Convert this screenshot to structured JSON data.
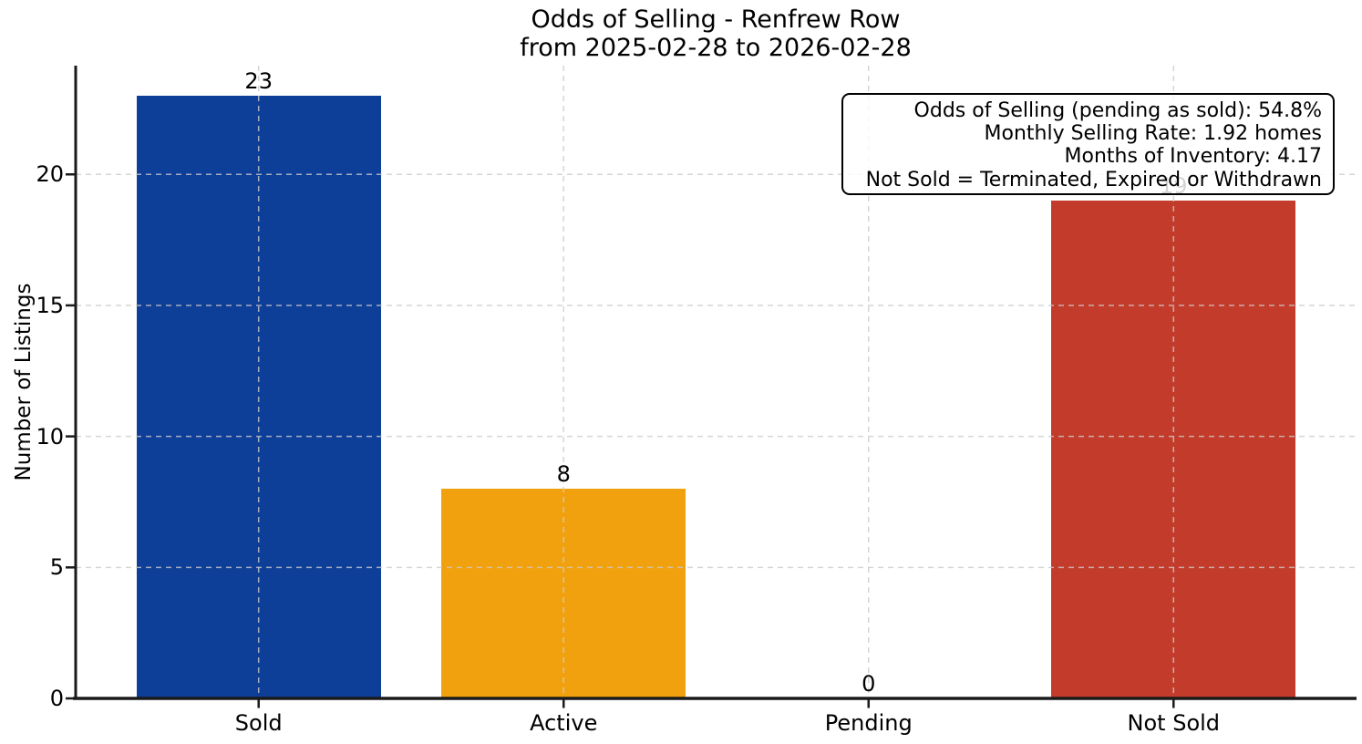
{
  "title": {
    "line1": "Odds of Selling - Renfrew Row",
    "line2": "from 2025-02-28 to 2026-02-28"
  },
  "chart_data": {
    "type": "bar",
    "categories": [
      "Sold",
      "Active",
      "Pending",
      "Not Sold"
    ],
    "values": [
      23,
      8,
      0,
      19
    ],
    "value_labels": [
      "23",
      "8",
      "0",
      "19"
    ],
    "bar_colors": [
      "#0d3e98",
      "#f2a10e",
      null,
      "#c23b2b"
    ],
    "title": "Odds of Selling - Renfrew Row from 2025-02-28 to 2026-02-28",
    "xlabel": "",
    "ylabel": "Number of Listings",
    "yticks": [
      0,
      5,
      10,
      15,
      20
    ],
    "ylim": [
      0,
      24.15
    ],
    "grid": "dashed light-gray gridlines, horizontal at y ticks and vertical at bar centers, drawn above bars",
    "legend_position": "none"
  },
  "annotation": {
    "lines": [
      "Odds of Selling (pending as sold): 54.8%",
      "Monthly Selling Rate: 1.92 homes",
      "Months of Inventory: 4.17",
      "Not Sold = Terminated, Expired or Withdrawn"
    ]
  },
  "colors": {
    "axis": "#1a1a1a",
    "text": "#000000",
    "grid": "#cbcbcb",
    "annotation_border": "#000000",
    "annotation_bg": "rgba(255,255,255,0.83)"
  }
}
